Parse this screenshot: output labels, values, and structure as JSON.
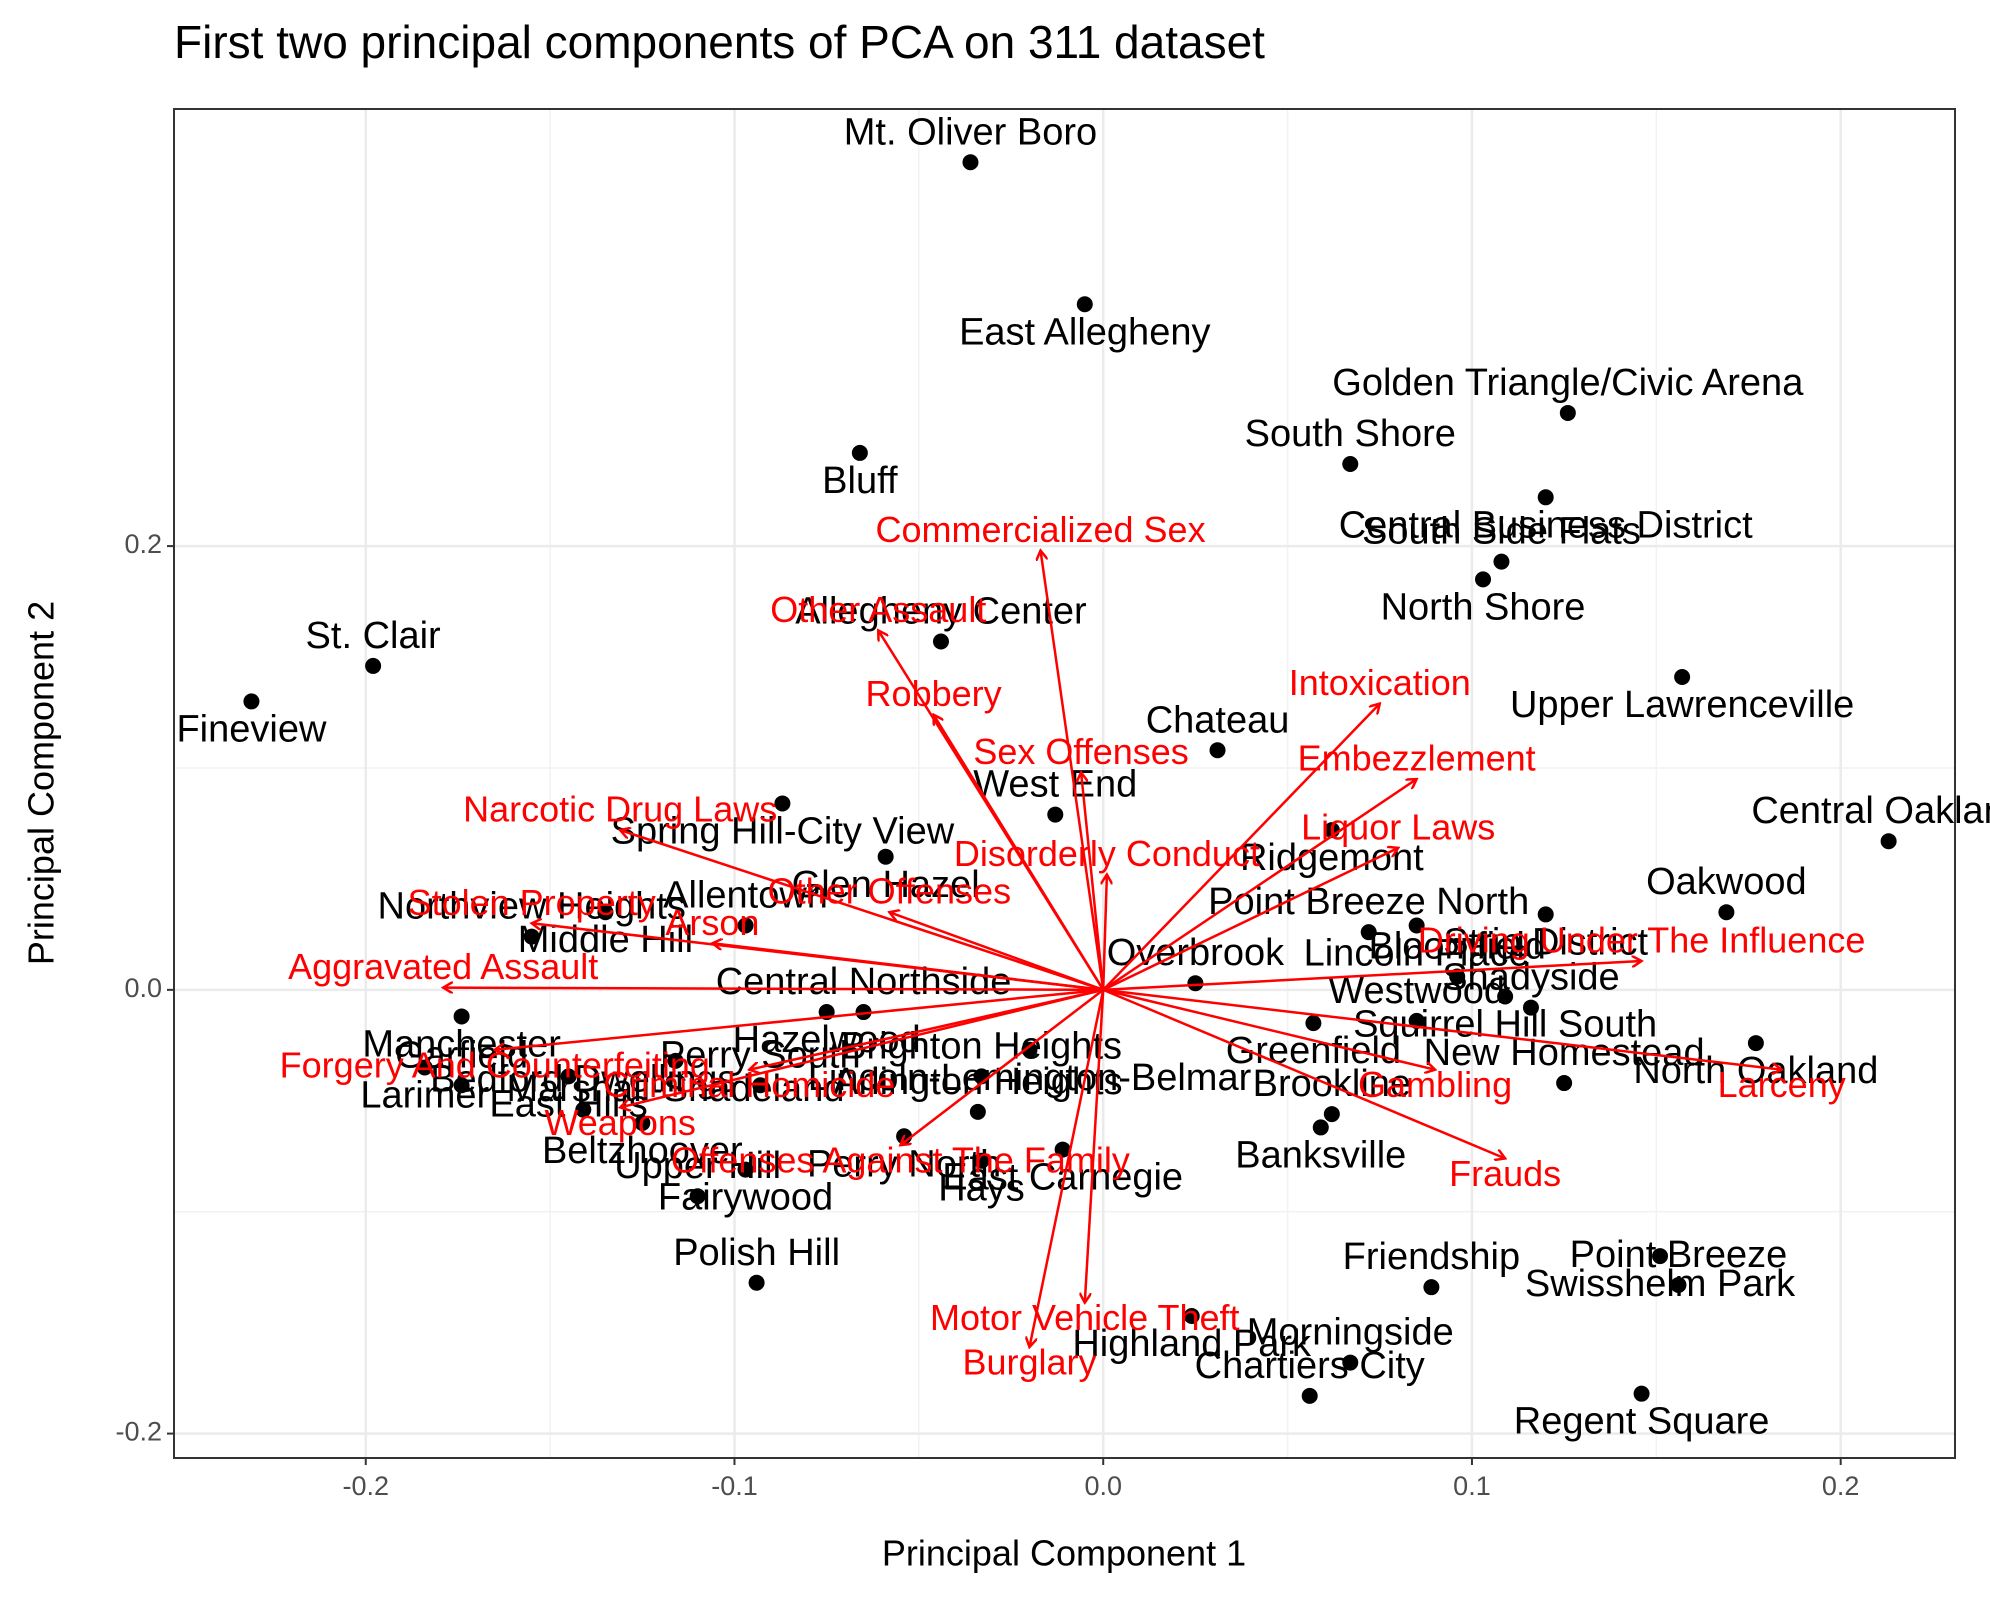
{
  "chart_data": {
    "type": "biplot",
    "title": "First two principal components of PCA on 311 dataset",
    "xlabel": "Principal Component 1",
    "ylabel": "Principal Component 2",
    "xlim": [
      -0.252,
      0.231
    ],
    "ylim": [
      -0.211,
      0.397
    ],
    "xticks": [
      -0.2,
      -0.1,
      {
        "value": 0,
        "label": "0.0"
      },
      0.1,
      0.2
    ],
    "yticks": [
      -0.2,
      {
        "value": 0,
        "label": "0.0"
      },
      0.2
    ],
    "grid": true,
    "points": {
      "color": "#000000",
      "labels": [
        "Mt. Oliver Boro",
        "East Allegheny",
        "Golden Triangle/Civic Arena",
        "Central Business District",
        "South Shore",
        "Bluff",
        "South Side Flats",
        "North Shore",
        "St. Clair",
        "Fineview",
        "Allegheny Center",
        "Upper Lawrenceville",
        "Chateau",
        "Spring Hill-City View",
        "West End",
        "Ridgemont",
        "Central Oakland",
        "Glen Hazel",
        "Allentown",
        "Middle Hill",
        "Northview Heights",
        "Strip District",
        "Oakwood",
        "Lincoln Place",
        "Point Breeze North",
        "Manchester",
        "Garfield",
        "Larimer",
        "Bedford Dwellings",
        "Beltzhoover",
        "Upper Hill",
        "East Hills",
        "Perry South",
        "Fairywood",
        "Polish Hill",
        "Perry North",
        "Arlington Heights",
        "Hays",
        "Chartiers City",
        "East Carnegie",
        "Morningside",
        "Regent Square",
        "Point Breeze",
        "Swisshelm Park",
        "New Homestead",
        "North Oakland",
        "Shadyside",
        "Squirrel Hill South",
        "Bloomfield",
        "Highland Park",
        "Brookline",
        "Banksville",
        "Westwood",
        "Greenfield",
        "Overbrook",
        "Hazelwood",
        "Central Northside",
        "Marshall-Shadeland",
        "Brighton Heights",
        "Lincoln-Lemington-Belmar",
        "Friendship"
      ],
      "x": [
        -0.036,
        -0.005,
        0.126,
        0.12,
        0.067,
        -0.066,
        0.108,
        0.103,
        -0.198,
        -0.231,
        -0.044,
        0.157,
        0.031,
        -0.087,
        -0.013,
        0.062,
        0.213,
        -0.059,
        -0.097,
        -0.135,
        -0.155,
        0.12,
        0.169,
        0.085,
        0.072,
        -0.174,
        -0.174,
        -0.184,
        -0.141,
        -0.125,
        -0.11,
        -0.145,
        -0.093,
        -0.097,
        -0.094,
        -0.054,
        -0.034,
        -0.033,
        0.056,
        -0.011,
        0.067,
        0.146,
        0.156,
        0.151,
        0.125,
        0.177,
        0.116,
        0.109,
        0.096,
        0.024,
        0.062,
        0.059,
        0.085,
        0.057,
        0.025,
        -0.075,
        -0.065,
        -0.116,
        -0.033,
        -0.02,
        0.089
      ],
      "y": [
        0.373,
        0.309,
        0.26,
        0.222,
        0.237,
        0.242,
        0.193,
        0.185,
        0.146,
        0.13,
        0.157,
        0.141,
        0.108,
        0.084,
        0.079,
        0.072,
        0.067,
        0.06,
        0.029,
        0.035,
        0.024,
        0.034,
        0.035,
        0.029,
        0.026,
        -0.012,
        -0.043,
        -0.035,
        -0.054,
        -0.06,
        -0.093,
        -0.039,
        -0.043,
        -0.081,
        -0.132,
        -0.066,
        -0.055,
        -0.077,
        -0.183,
        -0.072,
        -0.168,
        -0.182,
        -0.133,
        -0.12,
        -0.042,
        -0.024,
        -0.008,
        -0.003,
        0.006,
        -0.147,
        -0.056,
        -0.062,
        -0.014,
        -0.015,
        0.003,
        -0.01,
        -0.01,
        -0.032,
        -0.039,
        -0.027,
        -0.134
      ]
    },
    "arrows": {
      "color": "#ff0000",
      "labels": [
        "Commercialized Sex",
        "Other Assault",
        "Robbery",
        "Narcotic Drug Laws",
        "Other Offenses",
        "Stolen Property",
        "Arson",
        "Aggravated Assault",
        "Forgery And Counterfeiting",
        "Criminal Homicide",
        "Weapons",
        "Offenses Against The Family",
        "Motor Vehicle Theft",
        "Burglary",
        "Sex Offenses",
        "Intoxication",
        "Embezzlement",
        "Disorderly Conduct",
        "Liquor Laws",
        "Driving Under The Influence",
        "Larceny",
        "Gambling",
        "Frauds"
      ],
      "x": [
        -0.017,
        -0.061,
        -0.046,
        -0.131,
        -0.058,
        -0.155,
        -0.106,
        -0.179,
        -0.165,
        -0.096,
        -0.131,
        -0.055,
        -0.005,
        -0.02,
        -0.006,
        0.075,
        0.085,
        0.001,
        0.08,
        0.146,
        0.184,
        0.09,
        0.109
      ],
      "y": [
        0.198,
        0.162,
        0.124,
        0.072,
        0.035,
        0.03,
        0.021,
        0.001,
        -0.027,
        -0.036,
        -0.053,
        -0.07,
        -0.141,
        -0.161,
        0.098,
        0.129,
        0.095,
        0.052,
        0.064,
        0.013,
        -0.036,
        -0.036,
        -0.076
      ]
    }
  }
}
